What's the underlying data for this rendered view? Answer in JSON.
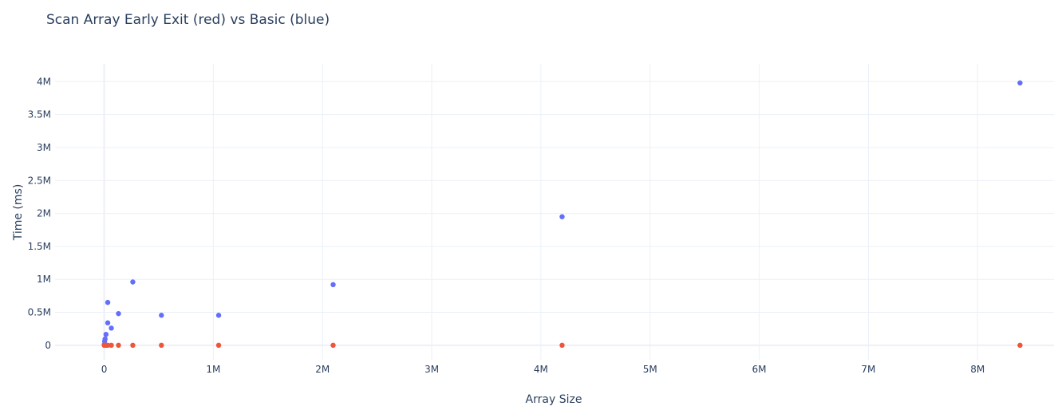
{
  "chart_data": {
    "type": "scatter",
    "title": "Scan Array Early Exit (red) vs Basic (blue)",
    "xlabel": "Array Size",
    "ylabel": "Time (ms)",
    "xlim": [
      -450000,
      8700000
    ],
    "ylim": [
      -220000,
      4270000
    ],
    "x_ticks": [
      0,
      1000000,
      2000000,
      3000000,
      4000000,
      5000000,
      6000000,
      7000000,
      8000000
    ],
    "x_tick_labels": [
      "0",
      "1M",
      "2M",
      "3M",
      "4M",
      "5M",
      "6M",
      "7M",
      "8M"
    ],
    "y_ticks": [
      0,
      500000,
      1000000,
      1500000,
      2000000,
      2500000,
      3000000,
      3500000,
      4000000
    ],
    "y_tick_labels": [
      "0",
      "0.5M",
      "1M",
      "1.5M",
      "2M",
      "2.5M",
      "3M",
      "3.5M",
      "4M"
    ],
    "grid": true,
    "series": [
      {
        "color": "#636efa",
        "points": [
          [
            1024,
            5000
          ],
          [
            2048,
            15000
          ],
          [
            4096,
            60000
          ],
          [
            8192,
            95000
          ],
          [
            16384,
            165000
          ],
          [
            32768,
            340000
          ],
          [
            65536,
            260000
          ],
          [
            32768,
            650000
          ],
          [
            131072,
            480000
          ],
          [
            262144,
            960000
          ],
          [
            524288,
            455000
          ],
          [
            1048576,
            455000
          ],
          [
            2097152,
            920000
          ],
          [
            4194304,
            1950000
          ],
          [
            8388608,
            3980000
          ]
        ]
      },
      {
        "color": "#ef553b",
        "points": [
          [
            1024,
            0
          ],
          [
            2048,
            0
          ],
          [
            4096,
            0
          ],
          [
            8192,
            0
          ],
          [
            16384,
            0
          ],
          [
            32768,
            0
          ],
          [
            65536,
            0
          ],
          [
            131072,
            0
          ],
          [
            262144,
            0
          ],
          [
            524288,
            0
          ],
          [
            1048576,
            0
          ],
          [
            2097152,
            0
          ],
          [
            4194304,
            0
          ],
          [
            8388608,
            0
          ]
        ]
      }
    ]
  }
}
